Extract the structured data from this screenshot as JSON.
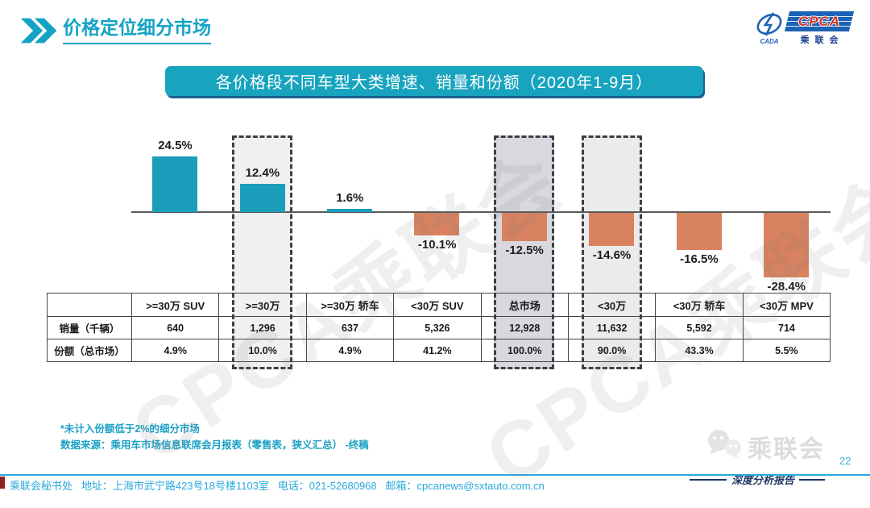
{
  "slide": {
    "title": "价格定位细分市场",
    "banner_title": "各价格段不同车型大类增速、销量和份额（2020年1-9月）",
    "page_number": "22",
    "report_label": "深度分析报告"
  },
  "logo": {
    "org_abbr": "CPCA",
    "org_name": "乘联会",
    "assoc": "CADA"
  },
  "watermark_text": "CPCA乘联会",
  "chart_data": {
    "type": "bar",
    "title": "各价格段不同车型大类增速、销量和份额（2020年1-9月）",
    "unit": "%",
    "categories": [
      ">=30万 SUV",
      ">=30万",
      ">=30万 轿车",
      "<30万 SUV",
      "总市场",
      "<30万",
      "<30万 轿车",
      "<30万 MPV"
    ],
    "values": [
      24.5,
      12.4,
      1.6,
      -10.1,
      -12.5,
      -14.6,
      -16.5,
      -28.4
    ],
    "value_labels": [
      "24.5%",
      "12.4%",
      "1.6%",
      "-10.1%",
      "-12.5%",
      "-14.6%",
      "-16.5%",
      "-28.4%"
    ],
    "positive_color": "#1B9EBC",
    "negative_color": "#D9825F",
    "axis": {
      "zero_baseline": true,
      "gridlines": false
    },
    "highlights": [
      {
        "index": 1,
        "category": ">=30万",
        "fill": "#F0F0F0"
      },
      {
        "index": 4,
        "category": "总市场",
        "fill": "#D8D8DE"
      },
      {
        "index": 5,
        "category": "<30万",
        "fill": "#EBEBEB"
      }
    ],
    "table": {
      "corner_label": "",
      "row_labels": [
        "销量（千辆）",
        "份额（总市场）"
      ],
      "rows": [
        [
          "640",
          "1,296",
          "637",
          "5,326",
          "12,928",
          "11,632",
          "5,592",
          "714"
        ],
        [
          "4.9%",
          "10.0%",
          "4.9%",
          "41.2%",
          "100.0%",
          "90.0%",
          "43.3%",
          "5.5%"
        ]
      ]
    }
  },
  "notes": {
    "line1": "*未计入份额低于2%的细分市场",
    "line2": "数据来源：乘用车市场信息联席会月报表（零售表，狭义汇总）  -终稿"
  },
  "footer": {
    "contact": "乘联会秘书处   地址：上海市武宁路423号18号楼1103室   电话：021-52680968   邮箱：cpcanews@sxtauto.com.cn",
    "wechat_name": "乘联会"
  }
}
